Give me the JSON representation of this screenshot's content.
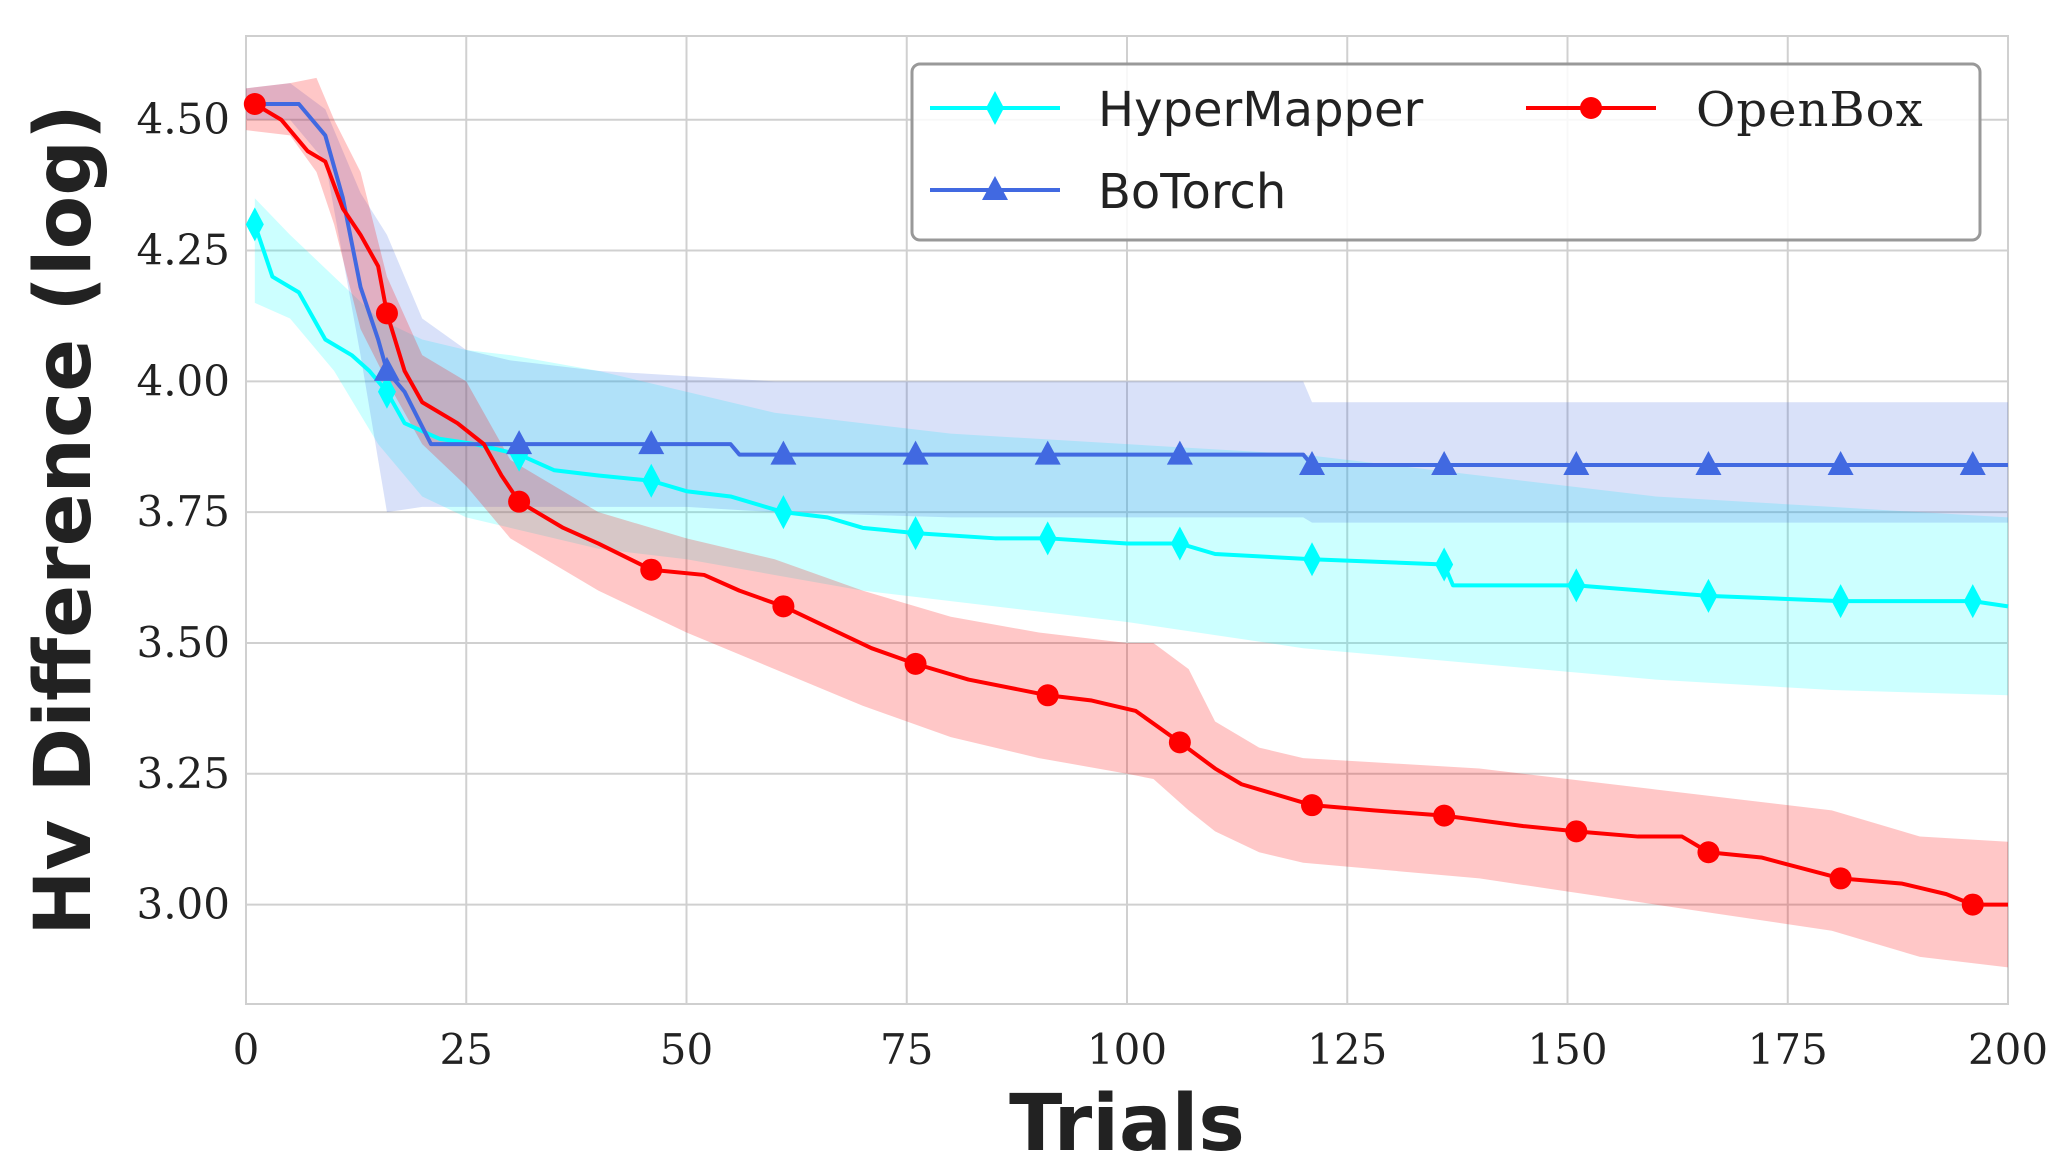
{
  "chart_data": {
    "type": "line",
    "title": "",
    "xlabel": "Trials",
    "ylabel": "Hv Difference (log)",
    "xlim": [
      0,
      200
    ],
    "ylim": [
      2.81,
      4.66
    ],
    "xticks": [
      0,
      25,
      50,
      75,
      100,
      125,
      150,
      175,
      200
    ],
    "yticks": [
      3.0,
      3.25,
      3.5,
      3.75,
      4.0,
      4.25,
      4.5
    ],
    "xtick_labels": [
      "0",
      "25",
      "50",
      "75",
      "100",
      "125",
      "150",
      "175",
      "200"
    ],
    "ytick_labels": [
      "3.00",
      "3.25",
      "3.50",
      "3.75",
      "4.00",
      "4.25",
      "4.50"
    ],
    "grid": true,
    "legend_position": "top-right",
    "series": [
      {
        "name": "HyperMapper",
        "color": "#00ffff",
        "marker": "diamond",
        "x": [
          1,
          3,
          6,
          9,
          12,
          14,
          16,
          18,
          22,
          26,
          31,
          35,
          40,
          46,
          50,
          55,
          61,
          66,
          70,
          76,
          85,
          91,
          100,
          106,
          110,
          121,
          136,
          137,
          151,
          166,
          181,
          196,
          200
        ],
        "y": [
          4.3,
          4.2,
          4.17,
          4.08,
          4.05,
          4.02,
          3.98,
          3.92,
          3.89,
          3.88,
          3.86,
          3.83,
          3.82,
          3.81,
          3.79,
          3.78,
          3.75,
          3.74,
          3.72,
          3.71,
          3.7,
          3.7,
          3.69,
          3.69,
          3.67,
          3.66,
          3.65,
          3.61,
          3.61,
          3.59,
          3.58,
          3.58,
          3.57
        ],
        "band": {
          "x": [
            1,
            5,
            10,
            15,
            20,
            25,
            30,
            40,
            50,
            60,
            70,
            80,
            100,
            120,
            140,
            160,
            180,
            200
          ],
          "upper": [
            4.35,
            4.28,
            4.2,
            4.12,
            4.08,
            4.06,
            4.05,
            4.02,
            3.98,
            3.94,
            3.92,
            3.9,
            3.88,
            3.86,
            3.82,
            3.78,
            3.76,
            3.74
          ],
          "lower": [
            4.15,
            4.12,
            4.02,
            3.88,
            3.78,
            3.74,
            3.72,
            3.68,
            3.66,
            3.63,
            3.6,
            3.58,
            3.54,
            3.49,
            3.46,
            3.43,
            3.41,
            3.4
          ]
        },
        "markers_x": [
          1,
          16,
          31,
          46,
          61,
          76,
          91,
          106,
          121,
          136,
          151,
          166,
          181,
          196
        ]
      },
      {
        "name": "BoTorch",
        "color": "#4169e1",
        "marker": "triangle",
        "x": [
          0,
          6,
          9,
          11,
          13,
          15,
          16,
          18,
          21,
          31,
          46,
          55,
          56,
          61,
          76,
          91,
          106,
          120,
          121,
          136,
          151,
          166,
          181,
          196,
          200
        ],
        "y": [
          4.53,
          4.53,
          4.47,
          4.35,
          4.18,
          4.08,
          4.02,
          3.98,
          3.88,
          3.88,
          3.88,
          3.88,
          3.86,
          3.86,
          3.86,
          3.86,
          3.86,
          3.86,
          3.84,
          3.84,
          3.84,
          3.84,
          3.84,
          3.84,
          3.84
        ],
        "band": {
          "x": [
            0,
            5,
            9,
            13,
            16,
            20,
            25,
            30,
            40,
            50,
            60,
            80,
            100,
            120,
            121,
            200
          ],
          "upper": [
            4.56,
            4.57,
            4.52,
            4.36,
            4.28,
            4.12,
            4.06,
            4.04,
            4.02,
            4.01,
            4.0,
            4.0,
            4.0,
            4.0,
            3.96,
            3.96
          ],
          "lower": [
            4.5,
            4.5,
            4.42,
            4.05,
            3.75,
            3.76,
            3.76,
            3.76,
            3.76,
            3.76,
            3.75,
            3.74,
            3.74,
            3.74,
            3.73,
            3.73
          ]
        },
        "markers_x": [
          16,
          31,
          46,
          61,
          76,
          91,
          106,
          121,
          136,
          151,
          166,
          181,
          196
        ]
      },
      {
        "name": "OpenBox",
        "color": "#ff0000",
        "marker": "circle",
        "x": [
          1,
          4,
          7,
          9,
          11,
          13,
          15,
          16,
          18,
          20,
          24,
          27,
          29,
          31,
          36,
          40,
          46,
          52,
          56,
          61,
          66,
          71,
          76,
          82,
          91,
          96,
          101,
          106,
          110,
          113,
          121,
          128,
          136,
          145,
          151,
          158,
          163,
          166,
          172,
          181,
          188,
          193,
          196,
          200
        ],
        "y": [
          4.53,
          4.5,
          4.44,
          4.42,
          4.33,
          4.28,
          4.22,
          4.13,
          4.02,
          3.96,
          3.92,
          3.88,
          3.82,
          3.77,
          3.72,
          3.69,
          3.64,
          3.63,
          3.6,
          3.57,
          3.53,
          3.49,
          3.46,
          3.43,
          3.4,
          3.39,
          3.37,
          3.31,
          3.26,
          3.23,
          3.19,
          3.18,
          3.17,
          3.15,
          3.14,
          3.13,
          3.13,
          3.1,
          3.09,
          3.05,
          3.04,
          3.02,
          3.0,
          3.0
        ],
        "band": {
          "x": [
            0,
            5,
            8,
            10,
            13,
            16,
            20,
            25,
            30,
            40,
            50,
            60,
            70,
            80,
            90,
            100,
            103,
            107,
            110,
            115,
            120,
            140,
            160,
            180,
            190,
            200
          ],
          "upper": [
            4.56,
            4.57,
            4.58,
            4.5,
            4.4,
            4.2,
            4.05,
            4.0,
            3.85,
            3.75,
            3.7,
            3.66,
            3.6,
            3.55,
            3.52,
            3.5,
            3.5,
            3.45,
            3.35,
            3.3,
            3.28,
            3.26,
            3.22,
            3.18,
            3.13,
            3.12
          ],
          "lower": [
            4.48,
            4.47,
            4.4,
            4.3,
            4.1,
            4.0,
            3.88,
            3.8,
            3.7,
            3.6,
            3.52,
            3.45,
            3.38,
            3.32,
            3.28,
            3.25,
            3.24,
            3.18,
            3.14,
            3.1,
            3.08,
            3.05,
            3.0,
            2.95,
            2.9,
            2.88
          ]
        },
        "markers_x": [
          1,
          16,
          31,
          46,
          61,
          76,
          91,
          106,
          121,
          136,
          151,
          166,
          181,
          196
        ]
      }
    ]
  }
}
